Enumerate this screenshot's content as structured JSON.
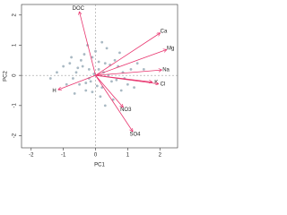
{
  "chart_data": {
    "type": "biplot",
    "xlabel": "PC1",
    "ylabel": "PC2",
    "xlim": [
      -2.3,
      2.55
    ],
    "ylim": [
      -2.4,
      2.35
    ],
    "xticks": [
      -2,
      -1,
      0,
      1,
      2
    ],
    "yticks": [
      -2,
      -1,
      0,
      1,
      2
    ],
    "point_color": "#a9b9c3",
    "arrow_color": "#e8336d",
    "points": {
      "x": [
        0.1,
        -0.2,
        0.3,
        -0.4,
        0.5,
        -0.1,
        0.2,
        -0.6,
        0.7,
        -0.3,
        0.0,
        0.4,
        -0.8,
        0.9,
        -0.5,
        0.6,
        -0.2,
        0.15,
        -0.7,
        1.1,
        -1.0,
        0.35,
        -0.15,
        0.8,
        -0.45,
        0.25,
        -0.9,
        1.3,
        -1.2,
        0.05,
        0.55,
        -0.35,
        0.45,
        -0.05,
        1.0,
        -0.65,
        0.75,
        -1.4,
        1.5,
        0.2,
        -0.25,
        0.65,
        -0.55,
        0.3,
        -0.1,
        0.85,
        -0.75,
        1.2,
        0.1,
        -0.3
      ],
      "y": [
        0.2,
        -0.1,
        0.4,
        0.3,
        -0.2,
        0.6,
        -0.4,
        0.1,
        0.3,
        -0.5,
        0.8,
        0.0,
        0.4,
        -0.1,
        -0.3,
        0.5,
        0.2,
        -0.7,
        -0.1,
        0.2,
        0.3,
        0.9,
        -0.2,
        -0.5,
        0.5,
        0.1,
        -0.3,
        0.4,
        0.1,
        -0.35,
        -0.8,
        0.7,
        0.35,
        0.05,
        -0.3,
        -0.6,
        0.75,
        -0.1,
        0.2,
        1.1,
        1.0,
        -0.15,
        0.25,
        -1.0,
        -0.55,
        0.1,
        0.6,
        -0.4,
        0.45,
        -0.25
      ]
    },
    "loadings": [
      {
        "name": "DOC",
        "x": -0.5,
        "y": 2.1
      },
      {
        "name": "Ca",
        "x": 2.0,
        "y": 1.4
      },
      {
        "name": "Mg",
        "x": 2.2,
        "y": 0.85
      },
      {
        "name": "Na",
        "x": 2.05,
        "y": 0.18
      },
      {
        "name": "K",
        "x": 1.75,
        "y": -0.22
      },
      {
        "name": "Cl",
        "x": 1.95,
        "y": -0.28
      },
      {
        "name": "H",
        "x": -1.15,
        "y": -0.47
      },
      {
        "name": "NO3",
        "x": 0.85,
        "y": -1.05
      },
      {
        "name": "SO4",
        "x": 1.15,
        "y": -1.85
      }
    ]
  }
}
